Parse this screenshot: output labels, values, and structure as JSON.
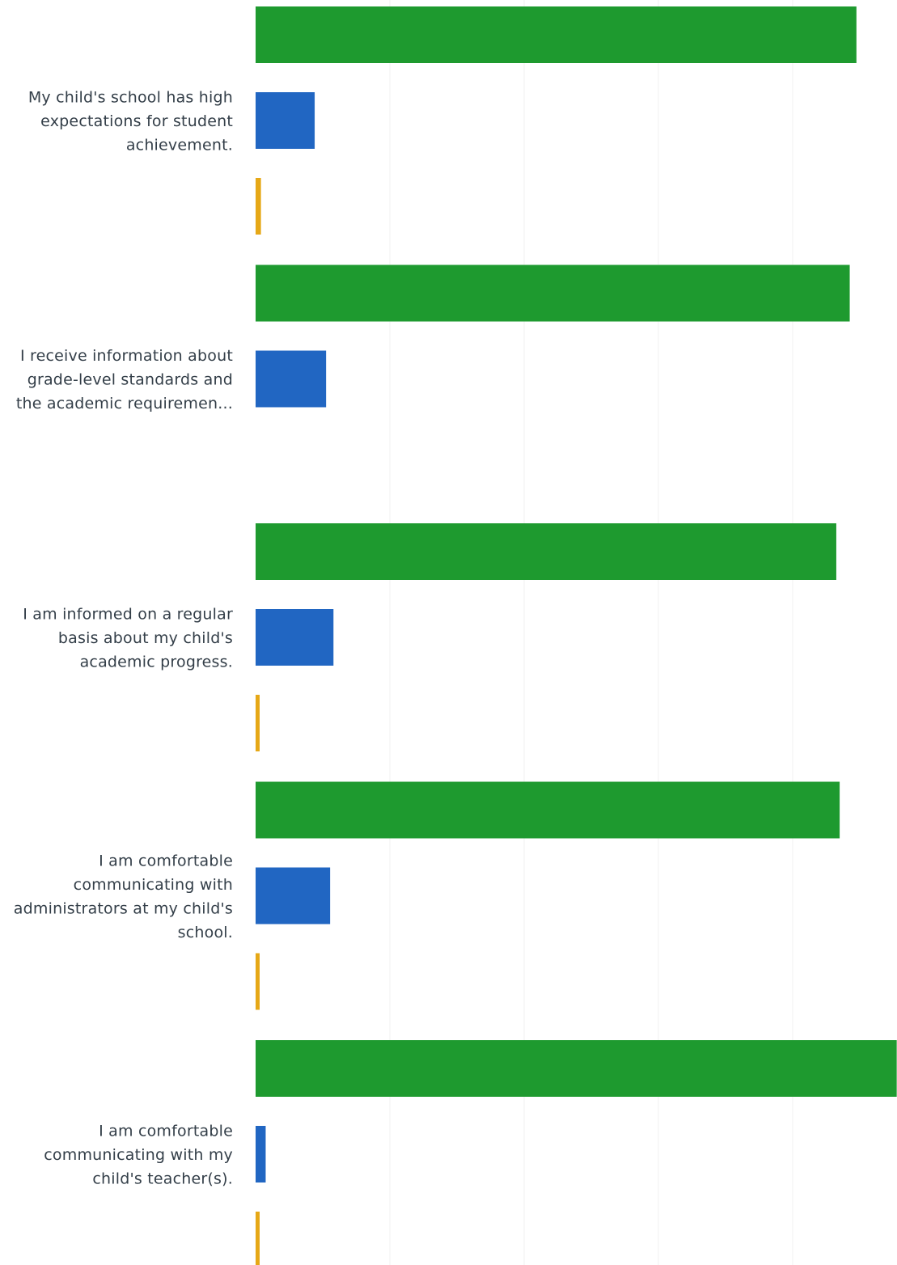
{
  "chart_data": {
    "type": "bar",
    "orientation": "horizontal",
    "categories": [
      [
        "My child's school has high",
        "expectations for student",
        "achievement."
      ],
      [
        "I receive information about",
        "grade-level standards and",
        "the academic requiremen..."
      ],
      [
        "I am informed on a regular",
        "basis about my child's",
        "academic progress."
      ],
      [
        "I am comfortable",
        "communicating with",
        "administrators at my child's",
        "school."
      ],
      [
        "I am comfortable",
        "communicating with my",
        "child's teacher(s)."
      ]
    ],
    "series": [
      {
        "color": "#1e9a2f",
        "values": [
          89.5,
          88.5,
          86.5,
          87.0,
          95.5
        ]
      },
      {
        "color": "#2166c2",
        "values": [
          8.8,
          10.5,
          11.6,
          11.1,
          1.5
        ]
      },
      {
        "color": "#e6a817",
        "values": [
          0.8,
          0.0,
          0.4,
          0.4,
          0.3
        ]
      }
    ],
    "xlim": [
      0,
      100
    ],
    "grid": true
  }
}
